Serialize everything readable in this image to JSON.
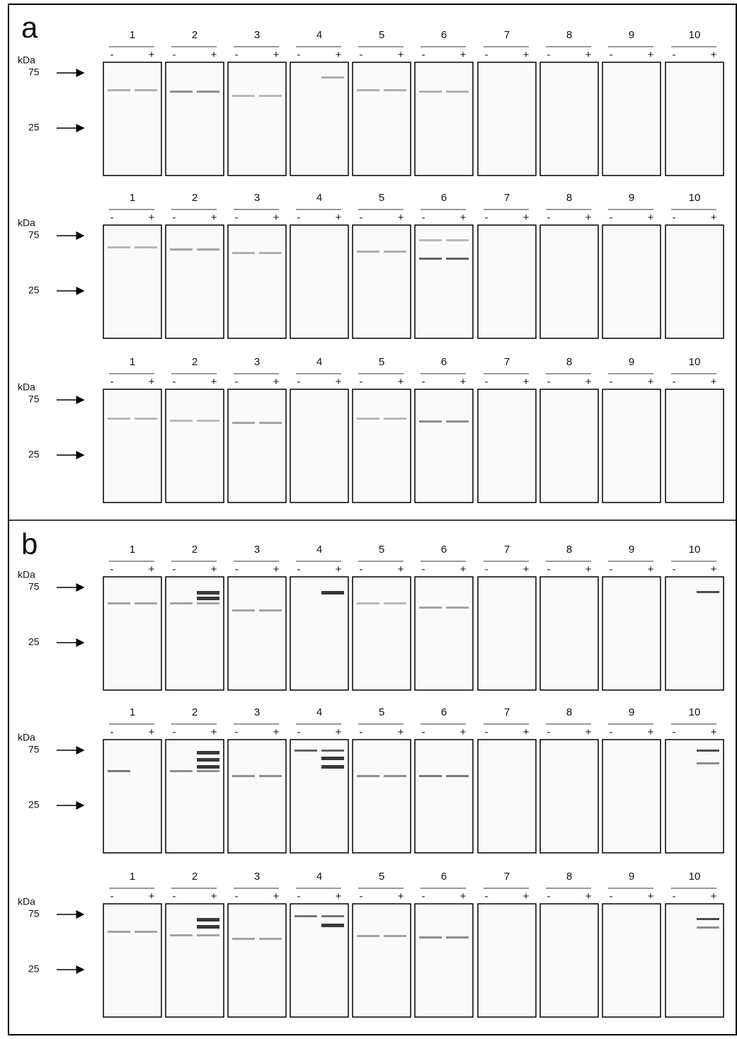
{
  "figure": {
    "panels": [
      {
        "label": "a",
        "rows": [
          {
            "marker_unit": "kDa",
            "markers": [
              "75",
              "25"
            ],
            "lanes": [
              {
                "label": "1",
                "neg": "-",
                "pos": "+"
              },
              {
                "label": "2",
                "neg": "-",
                "pos": "+"
              },
              {
                "label": "3",
                "neg": "-",
                "pos": "+"
              },
              {
                "label": "4",
                "neg": "-",
                "pos": "+"
              },
              {
                "label": "5",
                "neg": "-",
                "pos": "+"
              },
              {
                "label": "6",
                "neg": "-",
                "pos": "+"
              },
              {
                "label": "7",
                "neg": "-",
                "pos": "+"
              },
              {
                "label": "8",
                "neg": "-",
                "pos": "+"
              },
              {
                "label": "9",
                "neg": "-",
                "pos": "+"
              },
              {
                "label": "10",
                "neg": "-",
                "pos": "+"
              }
            ]
          },
          {
            "marker_unit": "kDa",
            "markers": [
              "75",
              "25"
            ],
            "lanes": [
              {
                "label": "1",
                "neg": "-",
                "pos": "+"
              },
              {
                "label": "2",
                "neg": "-",
                "pos": "+"
              },
              {
                "label": "3",
                "neg": "-",
                "pos": "+"
              },
              {
                "label": "4",
                "neg": "-",
                "pos": "+"
              },
              {
                "label": "5",
                "neg": "-",
                "pos": "+"
              },
              {
                "label": "6",
                "neg": "-",
                "pos": "+"
              },
              {
                "label": "7",
                "neg": "-",
                "pos": "+"
              },
              {
                "label": "8",
                "neg": "-",
                "pos": "+"
              },
              {
                "label": "9",
                "neg": "-",
                "pos": "+"
              },
              {
                "label": "10",
                "neg": "-",
                "pos": "+"
              }
            ]
          },
          {
            "marker_unit": "kDa",
            "markers": [
              "75",
              "25"
            ],
            "lanes": [
              {
                "label": "1",
                "neg": "-",
                "pos": "+"
              },
              {
                "label": "2",
                "neg": "-",
                "pos": "+"
              },
              {
                "label": "3",
                "neg": "-",
                "pos": "+"
              },
              {
                "label": "4",
                "neg": "-",
                "pos": "+"
              },
              {
                "label": "5",
                "neg": "-",
                "pos": "+"
              },
              {
                "label": "6",
                "neg": "-",
                "pos": "+"
              },
              {
                "label": "7",
                "neg": "-",
                "pos": "+"
              },
              {
                "label": "8",
                "neg": "-",
                "pos": "+"
              },
              {
                "label": "9",
                "neg": "-",
                "pos": "+"
              },
              {
                "label": "10",
                "neg": "-",
                "pos": "+"
              }
            ]
          }
        ]
      },
      {
        "label": "b",
        "rows": [
          {
            "marker_unit": "kDa",
            "markers": [
              "75",
              "25"
            ],
            "lanes": [
              {
                "label": "1",
                "neg": "-",
                "pos": "+"
              },
              {
                "label": "2",
                "neg": "-",
                "pos": "+"
              },
              {
                "label": "3",
                "neg": "-",
                "pos": "+"
              },
              {
                "label": "4",
                "neg": "-",
                "pos": "+"
              },
              {
                "label": "5",
                "neg": "-",
                "pos": "+"
              },
              {
                "label": "6",
                "neg": "-",
                "pos": "+"
              },
              {
                "label": "7",
                "neg": "-",
                "pos": "+"
              },
              {
                "label": "8",
                "neg": "-",
                "pos": "+"
              },
              {
                "label": "9",
                "neg": "-",
                "pos": "+"
              },
              {
                "label": "10",
                "neg": "-",
                "pos": "+"
              }
            ]
          },
          {
            "marker_unit": "kDa",
            "markers": [
              "75",
              "25"
            ],
            "lanes": [
              {
                "label": "1",
                "neg": "-",
                "pos": "+"
              },
              {
                "label": "2",
                "neg": "-",
                "pos": "+"
              },
              {
                "label": "3",
                "neg": "-",
                "pos": "+"
              },
              {
                "label": "4",
                "neg": "-",
                "pos": "+"
              },
              {
                "label": "5",
                "neg": "-",
                "pos": "+"
              },
              {
                "label": "6",
                "neg": "-",
                "pos": "+"
              },
              {
                "label": "7",
                "neg": "-",
                "pos": "+"
              },
              {
                "label": "8",
                "neg": "-",
                "pos": "+"
              },
              {
                "label": "9",
                "neg": "-",
                "pos": "+"
              },
              {
                "label": "10",
                "neg": "-",
                "pos": "+"
              }
            ]
          },
          {
            "marker_unit": "kDa",
            "markers": [
              "75",
              "25"
            ],
            "lanes": [
              {
                "label": "1",
                "neg": "-",
                "pos": "+"
              },
              {
                "label": "2",
                "neg": "-",
                "pos": "+"
              },
              {
                "label": "3",
                "neg": "-",
                "pos": "+"
              },
              {
                "label": "4",
                "neg": "-",
                "pos": "+"
              },
              {
                "label": "5",
                "neg": "-",
                "pos": "+"
              },
              {
                "label": "6",
                "neg": "-",
                "pos": "+"
              },
              {
                "label": "7",
                "neg": "-",
                "pos": "+"
              },
              {
                "label": "8",
                "neg": "-",
                "pos": "+"
              },
              {
                "label": "9",
                "neg": "-",
                "pos": "+"
              },
              {
                "label": "10",
                "neg": "-",
                "pos": "+"
              }
            ]
          }
        ]
      }
    ]
  }
}
